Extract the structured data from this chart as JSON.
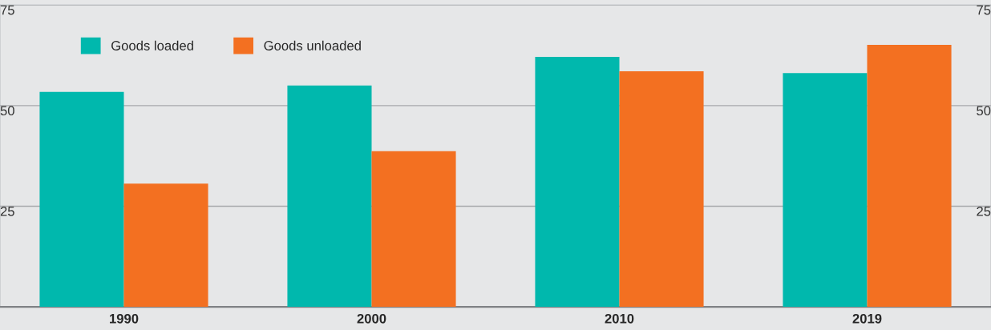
{
  "chart_data": {
    "type": "bar",
    "categories": [
      "1990",
      "2000",
      "2010",
      "2019"
    ],
    "series": [
      {
        "name": "Goods loaded",
        "color": "#00b8ad",
        "values": [
          53.4,
          55,
          62.1,
          58.1
        ]
      },
      {
        "name": "Goods unloaded",
        "color": "#f37021",
        "values": [
          30.6,
          38.7,
          58.5,
          65.1
        ]
      }
    ],
    "ylim": [
      0,
      75
    ],
    "yticks": [
      25,
      50,
      75
    ],
    "y2lim": [
      0,
      75
    ],
    "y2ticks": [
      25,
      50,
      75
    ],
    "grid": "y",
    "legend": "top left"
  }
}
